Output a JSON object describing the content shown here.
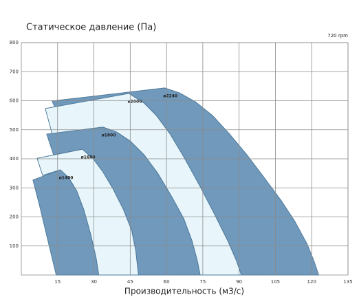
{
  "chart_data": {
    "type": "area",
    "title": "Статическое давление (Па)",
    "subtitle": "720 rpm",
    "x_label": "Производительность (м3/с)",
    "xlim": [
      0,
      135
    ],
    "xticks": [
      15,
      30,
      45,
      60,
      75,
      90,
      105,
      120,
      135
    ],
    "ylim": [
      0,
      800
    ],
    "yticks": [
      100,
      200,
      300,
      400,
      500,
      600,
      700,
      800
    ],
    "grid": true,
    "stroke": "#4f7b9c",
    "series": [
      {
        "name": "ø2240",
        "color": "#7199bb",
        "x": [
          12.7,
          59.2,
          65.4,
          72.0,
          79.0,
          86.1,
          93.2,
          100.3,
          107.4,
          113.0,
          118.1,
          121.0,
          122.9,
          90.9,
          89.0,
          85.3,
          79.6,
          73.4,
          67.1,
          61.5,
          55.8,
          50.7,
          44.5,
          13.9
        ],
        "values": [
          599,
          644,
          627,
          596,
          549,
          485,
          414,
          336,
          256,
          185,
          107,
          47,
          0,
          0,
          47,
          118,
          213,
          312,
          407,
          485,
          549,
          592,
          625,
          577
        ]
      },
      {
        "name": "ø2000",
        "color": "#e8f6fb",
        "x": [
          9.9,
          44.5,
          50.7,
          55.8,
          61.5,
          67.1,
          73.4,
          79.6,
          85.3,
          89.0,
          90.9,
          73.9,
          72.8,
          70.5,
          67.1,
          62.0,
          56.4,
          50.7,
          45.0,
          39.4,
          33.7,
          12.7
        ],
        "values": [
          573,
          625,
          592,
          549,
          485,
          407,
          312,
          213,
          118,
          47,
          0,
          0,
          47,
          118,
          194,
          272,
          350,
          414,
          461,
          492,
          509,
          487
        ]
      },
      {
        "name": "ø1800",
        "color": "#7199bb",
        "x": [
          10.5,
          33.7,
          39.4,
          45.0,
          50.7,
          56.4,
          62.0,
          67.1,
          70.5,
          72.8,
          73.9,
          48.4,
          47.3,
          45.6,
          42.2,
          37.9,
          33.7,
          29.5,
          25.2,
          13.3
        ],
        "values": [
          485,
          509,
          492,
          461,
          414,
          350,
          272,
          194,
          118,
          47,
          0,
          0,
          83,
          154,
          225,
          296,
          355,
          402,
          433,
          414
        ]
      },
      {
        "name": "ø1600",
        "color": "#e8f6fb",
        "x": [
          6.5,
          25.2,
          29.5,
          33.7,
          37.9,
          42.2,
          45.6,
          47.3,
          48.4,
          32.0,
          30.9,
          28.6,
          25.8,
          22.9,
          19.5,
          16.1,
          8.8
        ],
        "values": [
          402,
          433,
          402,
          355,
          296,
          225,
          154,
          83,
          0,
          0,
          59,
          142,
          225,
          289,
          336,
          362,
          343
        ]
      },
      {
        "name": "ø1400",
        "color": "#7199bb",
        "x": [
          4.8,
          16.1,
          19.5,
          22.9,
          25.8,
          28.6,
          30.9,
          32.0,
          14.4,
          11.0,
          7.6
        ],
        "values": [
          327,
          362,
          336,
          289,
          225,
          142,
          59,
          0,
          0,
          118,
          237
        ]
      }
    ]
  }
}
